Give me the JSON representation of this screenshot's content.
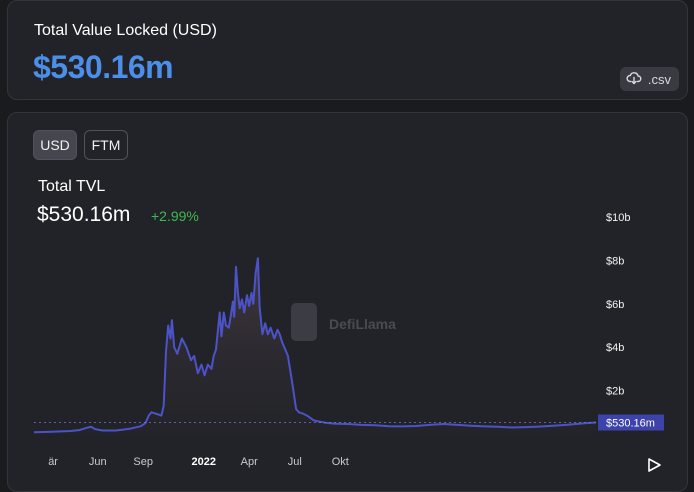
{
  "tvl_card": {
    "label": "Total Value Locked (USD)",
    "value": "$530.16m",
    "csv_label": ".csv",
    "csv_icon": "cloud-download-icon"
  },
  "chart_card": {
    "toggles": [
      {
        "label": "USD",
        "active": true
      },
      {
        "label": "FTM",
        "active": false
      }
    ],
    "title": "Total TVL",
    "value": "$530.16m",
    "change": "+2.99%",
    "watermark": "DefiLlama",
    "play_icon": "play-icon"
  },
  "colors": {
    "accent": "#4b8fe8",
    "line": "#4c53c9",
    "positive": "#3fb950",
    "tag": "#3d43a8"
  },
  "chart_data": {
    "type": "area",
    "title": "Total TVL",
    "y_unit": "USD (billions)",
    "ylim": [
      0,
      10
    ],
    "y_ticks": [
      {
        "v": 2,
        "label": "$2b"
      },
      {
        "v": 4,
        "label": "$4b"
      },
      {
        "v": 6,
        "label": "$6b"
      },
      {
        "v": 8,
        "label": "$8b"
      },
      {
        "v": 10,
        "label": "$10b"
      }
    ],
    "x_range": [
      -0.4,
      11.95
    ],
    "x_ticks": [
      {
        "m": 0,
        "label": "är"
      },
      {
        "m": 1.0,
        "label": "Jun"
      },
      {
        "m": 2.0,
        "label": "Sep"
      },
      {
        "m": 3.33,
        "label": "2022",
        "bold": true
      },
      {
        "m": 4.33,
        "label": "Apr"
      },
      {
        "m": 5.33,
        "label": "Jul"
      },
      {
        "m": 6.33,
        "label": "Okt"
      }
    ],
    "current_value_label": "$530.16m",
    "current_value": 0.53,
    "series": [
      {
        "points": [
          [
            -0.4,
            0.08
          ],
          [
            0.0,
            0.1
          ],
          [
            0.2,
            0.12
          ],
          [
            0.4,
            0.14
          ],
          [
            0.6,
            0.18
          ],
          [
            0.75,
            0.28
          ],
          [
            0.85,
            0.33
          ],
          [
            0.95,
            0.22
          ],
          [
            1.1,
            0.16
          ],
          [
            1.4,
            0.16
          ],
          [
            1.7,
            0.24
          ],
          [
            1.95,
            0.36
          ],
          [
            2.05,
            0.5
          ],
          [
            2.12,
            0.85
          ],
          [
            2.18,
            1.0
          ],
          [
            2.3,
            0.92
          ],
          [
            2.4,
            0.85
          ],
          [
            2.45,
            1.3
          ],
          [
            2.5,
            3.8
          ],
          [
            2.55,
            5.0
          ],
          [
            2.6,
            4.4
          ],
          [
            2.63,
            5.25
          ],
          [
            2.68,
            4.0
          ],
          [
            2.75,
            3.7
          ],
          [
            2.85,
            4.4
          ],
          [
            2.95,
            4.0
          ],
          [
            3.05,
            3.4
          ],
          [
            3.12,
            3.6
          ],
          [
            3.2,
            2.8
          ],
          [
            3.28,
            3.2
          ],
          [
            3.35,
            2.7
          ],
          [
            3.42,
            3.2
          ],
          [
            3.5,
            3.0
          ],
          [
            3.55,
            3.6
          ],
          [
            3.6,
            3.9
          ],
          [
            3.68,
            5.6
          ],
          [
            3.72,
            4.5
          ],
          [
            3.77,
            5.6
          ],
          [
            3.82,
            5.0
          ],
          [
            3.88,
            4.9
          ],
          [
            3.92,
            5.4
          ],
          [
            3.97,
            6.1
          ],
          [
            4.0,
            5.4
          ],
          [
            4.04,
            7.7
          ],
          [
            4.08,
            6.5
          ],
          [
            4.12,
            5.8
          ],
          [
            4.17,
            6.2
          ],
          [
            4.22,
            5.6
          ],
          [
            4.28,
            6.4
          ],
          [
            4.33,
            5.9
          ],
          [
            4.38,
            6.5
          ],
          [
            4.42,
            6.0
          ],
          [
            4.47,
            7.4
          ],
          [
            4.52,
            8.1
          ],
          [
            4.56,
            5.8
          ],
          [
            4.62,
            4.6
          ],
          [
            4.68,
            5.1
          ],
          [
            4.74,
            4.6
          ],
          [
            4.8,
            4.9
          ],
          [
            4.88,
            4.4
          ],
          [
            4.95,
            4.8
          ],
          [
            5.0,
            4.6
          ],
          [
            5.05,
            4.25
          ],
          [
            5.12,
            3.9
          ],
          [
            5.18,
            3.6
          ],
          [
            5.24,
            2.8
          ],
          [
            5.3,
            2.0
          ],
          [
            5.36,
            1.15
          ],
          [
            5.42,
            1.0
          ],
          [
            5.5,
            0.95
          ],
          [
            5.6,
            0.85
          ],
          [
            5.75,
            0.62
          ],
          [
            5.9,
            0.56
          ],
          [
            6.0,
            0.52
          ],
          [
            6.2,
            0.48
          ],
          [
            6.5,
            0.46
          ],
          [
            6.8,
            0.42
          ],
          [
            7.1,
            0.4
          ],
          [
            7.4,
            0.36
          ],
          [
            7.7,
            0.35
          ],
          [
            8.0,
            0.37
          ],
          [
            8.3,
            0.42
          ],
          [
            8.6,
            0.46
          ],
          [
            8.9,
            0.42
          ],
          [
            9.2,
            0.38
          ],
          [
            9.5,
            0.35
          ],
          [
            9.8,
            0.33
          ],
          [
            10.1,
            0.3
          ],
          [
            10.4,
            0.32
          ],
          [
            10.7,
            0.34
          ],
          [
            11.0,
            0.38
          ],
          [
            11.3,
            0.42
          ],
          [
            11.6,
            0.48
          ],
          [
            11.95,
            0.53
          ]
        ]
      }
    ]
  }
}
